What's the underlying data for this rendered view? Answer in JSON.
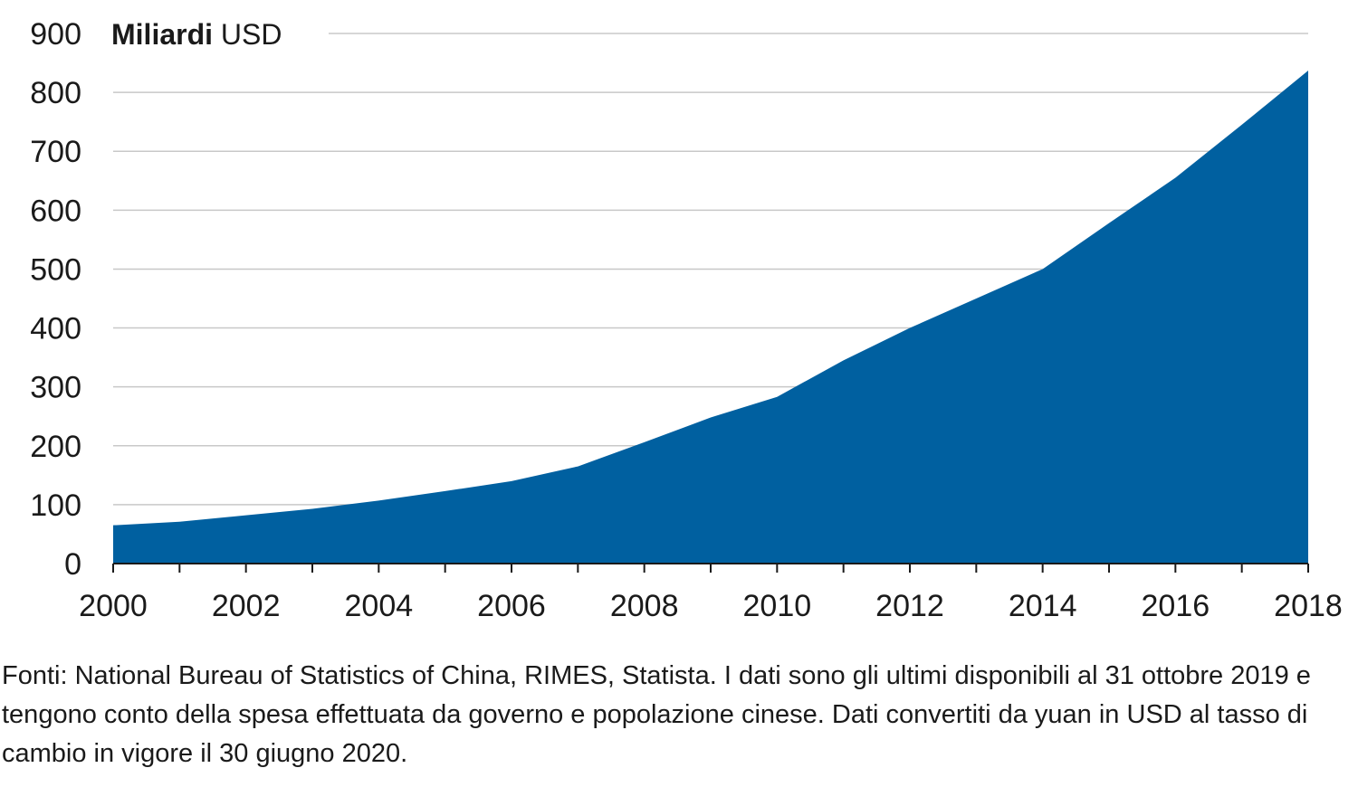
{
  "chart_data": {
    "type": "area",
    "unit_label_bold": "Miliardi",
    "unit_label_rest": " USD",
    "x": [
      2000,
      2001,
      2002,
      2003,
      2004,
      2005,
      2006,
      2007,
      2008,
      2009,
      2010,
      2011,
      2012,
      2013,
      2014,
      2015,
      2016,
      2017,
      2018
    ],
    "x_tick_labels": [
      "2000",
      "2002",
      "2004",
      "2006",
      "2008",
      "2010",
      "2012",
      "2014",
      "2016",
      "2018"
    ],
    "y_tick_labels": [
      "0",
      "100",
      "200",
      "300",
      "400",
      "500",
      "600",
      "700",
      "800",
      "900"
    ],
    "series": [
      {
        "values": [
          65,
          71,
          82,
          93,
          107,
          123,
          140,
          165,
          206,
          248,
          283,
          345,
          400,
          450,
          500,
          578,
          655,
          745,
          837
        ],
        "color": "#0060a0"
      }
    ],
    "xlim": [
      2000,
      2018
    ],
    "ylim": [
      0,
      900
    ],
    "y_ticks": [
      0,
      100,
      200,
      300,
      400,
      500,
      600,
      700,
      800,
      900
    ],
    "grid": true
  },
  "source_note": "Fonti: National Bureau of Statistics of China, RIMES, Statista. I dati sono gli ultimi disponibili al 31 ottobre 2019 e tengono conto della spesa effettuata da governo e popolazione cinese. Dati convertiti da yuan in USD al tasso di cambio in vigore il 30 giugno 2020."
}
